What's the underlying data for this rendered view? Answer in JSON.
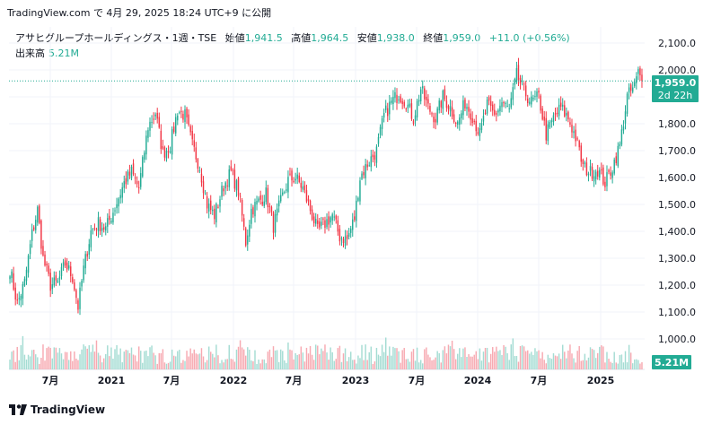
{
  "header": {
    "caption": "TradingView.com で 4月 29, 2025 18:24 UTC+9 に公開"
  },
  "legend": {
    "symbol": "アサヒグループホールディングス・1週・TSE",
    "open_label": "始値",
    "open": "1,941.5",
    "high_label": "高値",
    "high": "1,964.5",
    "low_label": "安値",
    "low": "1,938.0",
    "close_label": "終値",
    "close": "1,959.0",
    "change": "+11.0 (+0.56%)",
    "volume_label": "出来高",
    "volume": "5.21M"
  },
  "price_tag": {
    "price": "1,959.0",
    "countdown": "2d 22h",
    "volume_tag": "5.21M"
  },
  "footer": {
    "brand": "TradingView"
  },
  "colors": {
    "up": "#22ab94",
    "down": "#f23645",
    "up_vol": "#a4dcd3",
    "down_vol": "#f7a9b1",
    "grid": "#f0f3fa"
  },
  "chart_data": {
    "type": "candlestick",
    "interval": "1W",
    "y_ticks": [
      "2,100.0",
      "2,000.0",
      "1,900.0",
      "1,800.0",
      "1,700.0",
      "1,600.0",
      "1,500.0",
      "1,400.0",
      "1,300.0",
      "1,200.0",
      "1,100.0",
      "1,000.0"
    ],
    "ylim": [
      960,
      2140
    ],
    "x_ticks": [
      "7月",
      "2021",
      "7月",
      "2022",
      "7月",
      "2023",
      "7月",
      "2024",
      "7月",
      "2025"
    ],
    "last_close": 1959.0,
    "anchors": [
      [
        0,
        1260
      ],
      [
        4,
        1130
      ],
      [
        8,
        1210
      ],
      [
        12,
        1390
      ],
      [
        15,
        1480
      ],
      [
        18,
        1300
      ],
      [
        22,
        1200
      ],
      [
        26,
        1210
      ],
      [
        30,
        1280
      ],
      [
        34,
        1230
      ],
      [
        37,
        1120
      ],
      [
        40,
        1260
      ],
      [
        44,
        1400
      ],
      [
        48,
        1430
      ],
      [
        52,
        1410
      ],
      [
        57,
        1490
      ],
      [
        62,
        1580
      ],
      [
        66,
        1620
      ],
      [
        70,
        1560
      ],
      [
        75,
        1790
      ],
      [
        79,
        1840
      ],
      [
        83,
        1690
      ],
      [
        87,
        1720
      ],
      [
        91,
        1850
      ],
      [
        95,
        1830
      ],
      [
        99,
        1720
      ],
      [
        103,
        1640
      ],
      [
        107,
        1500
      ],
      [
        111,
        1460
      ],
      [
        116,
        1570
      ],
      [
        120,
        1620
      ],
      [
        124,
        1550
      ],
      [
        128,
        1360
      ],
      [
        131,
        1480
      ],
      [
        135,
        1510
      ],
      [
        139,
        1540
      ],
      [
        143,
        1420
      ],
      [
        147,
        1510
      ],
      [
        151,
        1590
      ],
      [
        155,
        1600
      ],
      [
        159,
        1560
      ],
      [
        163,
        1480
      ],
      [
        167,
        1400
      ],
      [
        171,
        1430
      ],
      [
        175,
        1460
      ],
      [
        179,
        1380
      ],
      [
        183,
        1370
      ],
      [
        187,
        1450
      ],
      [
        190,
        1600
      ],
      [
        194,
        1650
      ],
      [
        199,
        1700
      ],
      [
        203,
        1830
      ],
      [
        207,
        1880
      ],
      [
        211,
        1910
      ],
      [
        215,
        1880
      ],
      [
        219,
        1820
      ],
      [
        223,
        1930
      ],
      [
        227,
        1860
      ],
      [
        231,
        1820
      ],
      [
        235,
        1900
      ],
      [
        239,
        1860
      ],
      [
        243,
        1800
      ],
      [
        247,
        1880
      ],
      [
        251,
        1830
      ],
      [
        255,
        1760
      ],
      [
        259,
        1870
      ],
      [
        263,
        1830
      ],
      [
        267,
        1880
      ],
      [
        271,
        1850
      ],
      [
        275,
        1980
      ],
      [
        279,
        1920
      ],
      [
        283,
        1880
      ],
      [
        287,
        1900
      ],
      [
        291,
        1760
      ],
      [
        295,
        1820
      ],
      [
        299,
        1860
      ],
      [
        303,
        1820
      ],
      [
        307,
        1750
      ],
      [
        311,
        1640
      ],
      [
        315,
        1620
      ],
      [
        319,
        1630
      ],
      [
        323,
        1580
      ],
      [
        327,
        1640
      ],
      [
        331,
        1720
      ],
      [
        335,
        1900
      ],
      [
        339,
        1940
      ],
      [
        341,
        1990
      ],
      [
        343,
        1959
      ]
    ]
  }
}
